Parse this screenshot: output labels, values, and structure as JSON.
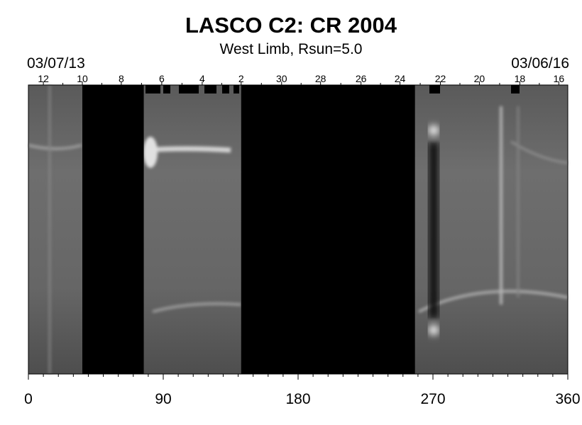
{
  "chart_data": {
    "type": "heatmap",
    "title": "LASCO C2: CR 2004",
    "subtitle": "West Limb, Rsun=5.0",
    "start_date": "03/07/13",
    "end_date": "03/06/16",
    "x_ticks": [
      0,
      90,
      180,
      270,
      360
    ],
    "xlim": [
      0,
      360
    ],
    "top_day_ticks": [
      {
        "label": "12",
        "x": 10
      },
      {
        "label": "10",
        "x": 36
      },
      {
        "label": "8",
        "x": 62
      },
      {
        "label": "6",
        "x": 89
      },
      {
        "label": "4",
        "x": 116
      },
      {
        "label": "2",
        "x": 142
      },
      {
        "label": "30",
        "x": 169
      },
      {
        "label": "28",
        "x": 195
      },
      {
        "label": "26",
        "x": 222
      },
      {
        "label": "24",
        "x": 248
      },
      {
        "label": "22",
        "x": 275
      },
      {
        "label": "20",
        "x": 301
      },
      {
        "label": "18",
        "x": 328
      },
      {
        "label": "16",
        "x": 354
      }
    ],
    "data_gaps": [
      [
        36,
        77
      ],
      [
        142,
        258
      ]
    ],
    "colormap": "grayscale"
  }
}
